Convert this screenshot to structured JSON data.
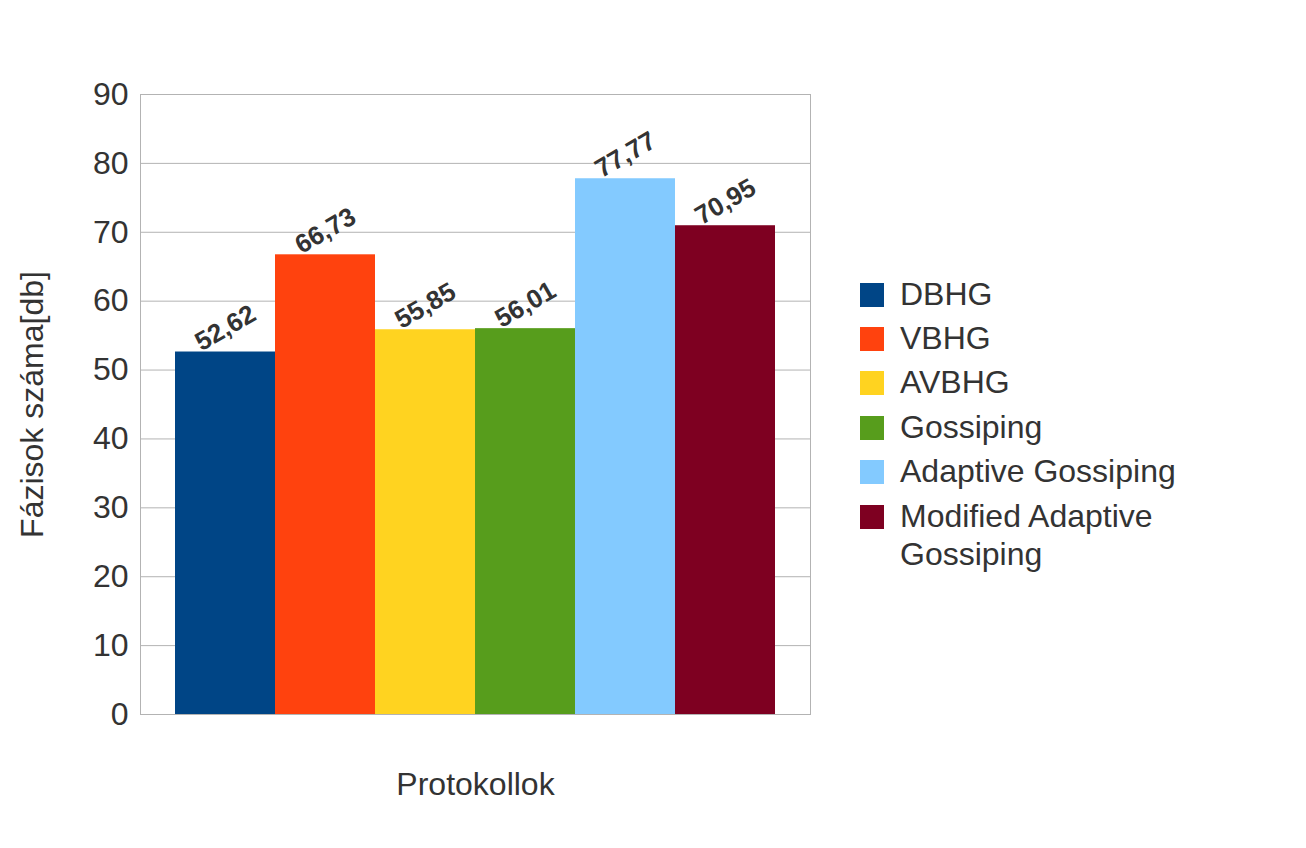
{
  "chart_data": {
    "type": "bar",
    "y_label": "Fázisok száma[db]",
    "x_label": "Protokollok",
    "categories": [
      null
    ],
    "series": [
      {
        "name": "DBHG",
        "color": "#004586",
        "values": [
          52.62
        ],
        "value_labels": [
          "52,62"
        ]
      },
      {
        "name": "VBHG",
        "color": "#ff420e",
        "values": [
          66.73
        ],
        "value_labels": [
          "66,73"
        ]
      },
      {
        "name": "AVBHG",
        "color": "#ffd320",
        "values": [
          55.85
        ],
        "value_labels": [
          "55,85"
        ]
      },
      {
        "name": "Gossiping",
        "color": "#579d1c",
        "values": [
          56.01
        ],
        "value_labels": [
          "56,01"
        ]
      },
      {
        "name": "Adaptive Gossiping",
        "color": "#83caff",
        "values": [
          77.77
        ],
        "value_labels": [
          "77,77"
        ]
      },
      {
        "name": "Modified Adaptive Gossiping",
        "color": "#7e0021",
        "values": [
          70.95
        ],
        "value_labels": [
          "70,95"
        ]
      }
    ],
    "ylim": [
      0,
      90
    ],
    "yticks": [
      0,
      10,
      20,
      30,
      40,
      50,
      60,
      70,
      80,
      90
    ],
    "grid": true,
    "legend": "right",
    "data_labels": true
  }
}
